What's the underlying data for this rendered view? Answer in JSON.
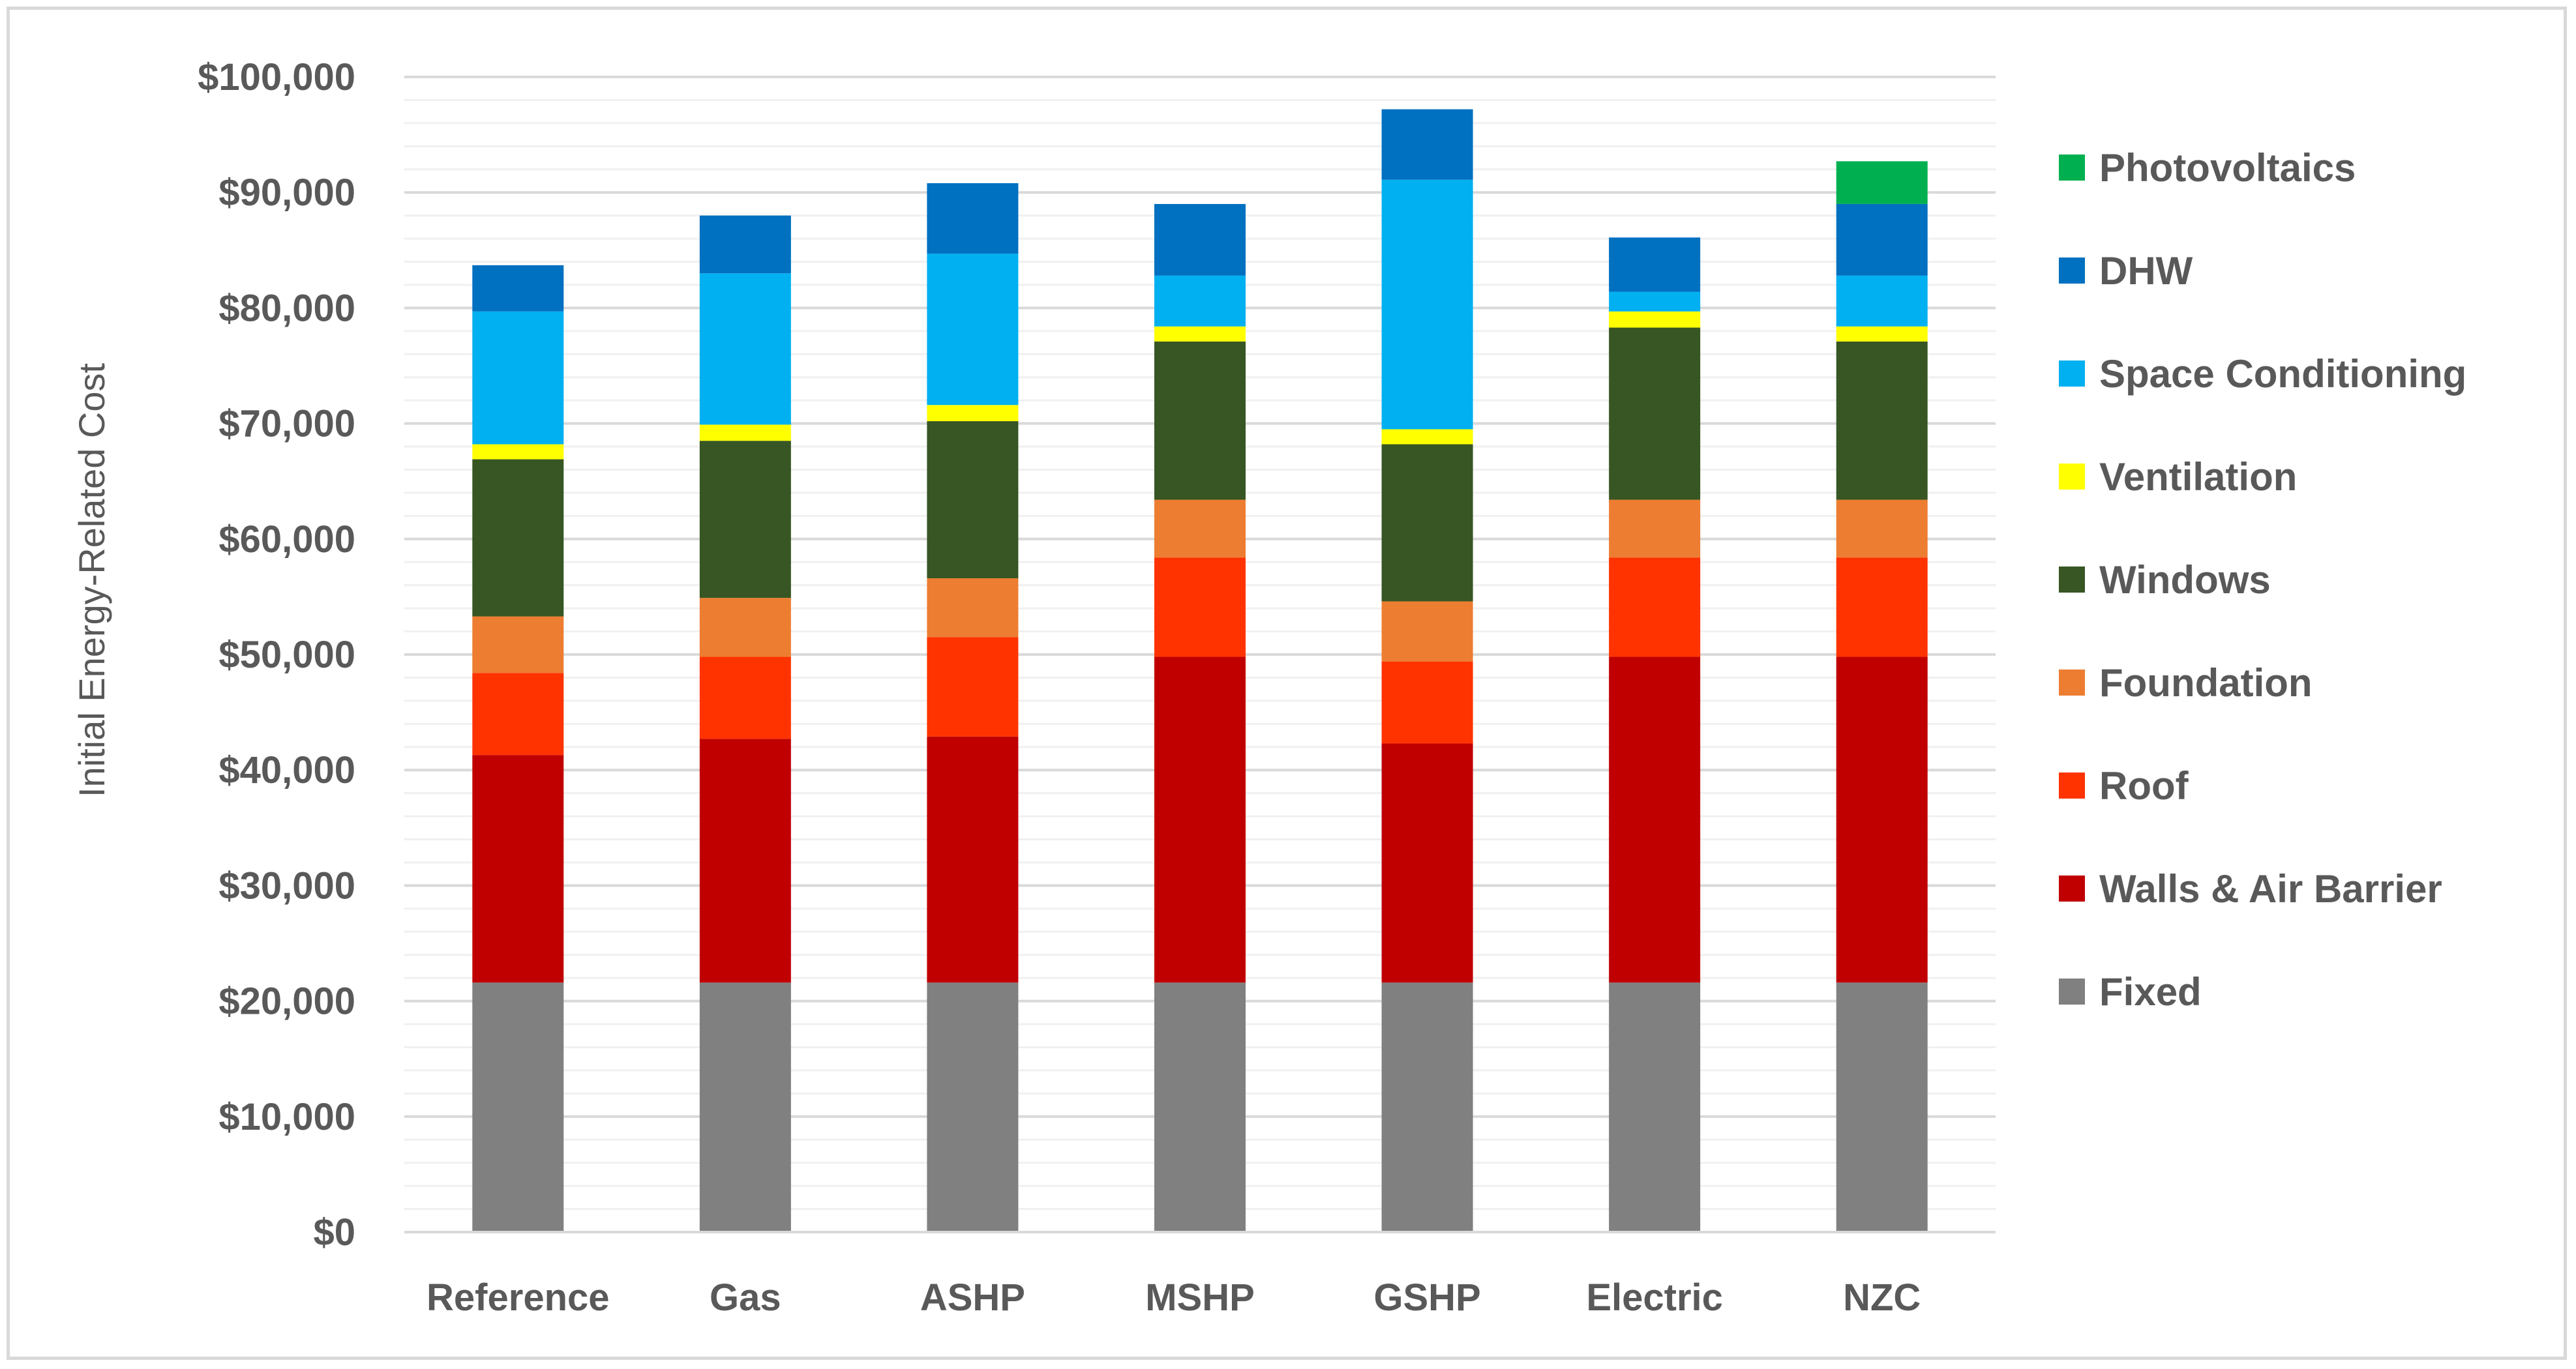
{
  "chart_data": {
    "type": "bar",
    "stacked": true,
    "ylabel": "Initial Energy-Related Cost",
    "xlabel": "",
    "ylim": [
      0,
      100000
    ],
    "ytick_step": 10000,
    "minor_grid_step": 2000,
    "ytick_labels": [
      "$0",
      "$10,000",
      "$20,000",
      "$30,000",
      "$40,000",
      "$50,000",
      "$60,000",
      "$70,000",
      "$80,000",
      "$90,000",
      "$100,000"
    ],
    "categories": [
      "Reference",
      "Gas",
      "ASHP",
      "MSHP",
      "GSHP",
      "Electric",
      "NZC"
    ],
    "legend_position": "right",
    "series": [
      {
        "name": "Fixed",
        "color": "#808080",
        "values": [
          21600,
          21600,
          21600,
          21600,
          21600,
          21600,
          21600
        ]
      },
      {
        "name": "Walls & Air Barrier",
        "color": "#c00000",
        "values": [
          19700,
          21100,
          21300,
          28200,
          20700,
          28200,
          28200
        ]
      },
      {
        "name": "Roof",
        "color": "#ff3300",
        "values": [
          7100,
          7100,
          8600,
          8600,
          7100,
          8600,
          8600
        ]
      },
      {
        "name": "Foundation",
        "color": "#ed7d31",
        "values": [
          4900,
          5100,
          5100,
          5000,
          5200,
          5000,
          5000
        ]
      },
      {
        "name": "Windows",
        "color": "#375623",
        "values": [
          13600,
          13600,
          13600,
          13700,
          13600,
          14900,
          13700
        ]
      },
      {
        "name": "Ventilation",
        "color": "#ffff00",
        "values": [
          1300,
          1400,
          1400,
          1300,
          1300,
          1400,
          1300
        ]
      },
      {
        "name": "Space Conditioning",
        "color": "#00b0f0",
        "values": [
          11500,
          13100,
          13100,
          4400,
          21600,
          1700,
          4400
        ]
      },
      {
        "name": "DHW",
        "color": "#0070c0",
        "values": [
          4000,
          5000,
          6100,
          6200,
          6100,
          4700,
          6200
        ]
      },
      {
        "name": "Photovoltaics",
        "color": "#00b050",
        "values": [
          0,
          0,
          0,
          0,
          0,
          0,
          3700
        ]
      }
    ]
  }
}
